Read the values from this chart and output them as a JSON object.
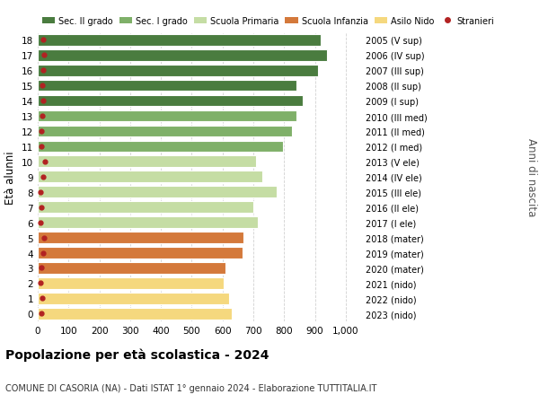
{
  "ages": [
    18,
    17,
    16,
    15,
    14,
    13,
    12,
    11,
    10,
    9,
    8,
    7,
    6,
    5,
    4,
    3,
    2,
    1,
    0
  ],
  "values": [
    920,
    940,
    910,
    840,
    860,
    840,
    825,
    795,
    710,
    730,
    775,
    700,
    715,
    668,
    665,
    610,
    605,
    620,
    630
  ],
  "stranieri": [
    18,
    20,
    18,
    16,
    17,
    14,
    13,
    11,
    22,
    18,
    10,
    12,
    10,
    20,
    18,
    12,
    10,
    14,
    12
  ],
  "right_labels": [
    "2005 (V sup)",
    "2006 (IV sup)",
    "2007 (III sup)",
    "2008 (II sup)",
    "2009 (I sup)",
    "2010 (III med)",
    "2011 (II med)",
    "2012 (I med)",
    "2013 (V ele)",
    "2014 (IV ele)",
    "2015 (III ele)",
    "2016 (II ele)",
    "2017 (I ele)",
    "2018 (mater)",
    "2019 (mater)",
    "2020 (mater)",
    "2021 (nido)",
    "2022 (nido)",
    "2023 (nido)"
  ],
  "bar_colors": [
    "#4a7c3f",
    "#4a7c3f",
    "#4a7c3f",
    "#4a7c3f",
    "#4a7c3f",
    "#7fb069",
    "#7fb069",
    "#7fb069",
    "#c5dda4",
    "#c5dda4",
    "#c5dda4",
    "#c5dda4",
    "#c5dda4",
    "#d4793b",
    "#d4793b",
    "#d4793b",
    "#f5d87e",
    "#f5d87e",
    "#f5d87e"
  ],
  "legend_labels": [
    "Sec. II grado",
    "Sec. I grado",
    "Scuola Primaria",
    "Scuola Infanzia",
    "Asilo Nido",
    "Stranieri"
  ],
  "legend_colors": [
    "#4a7c3f",
    "#7fb069",
    "#c5dda4",
    "#d4793b",
    "#f5d87e",
    "#b22222"
  ],
  "ylabel": "Età alunni",
  "right_ylabel": "Anni di nascita",
  "title": "Popolazione per età scolastica - 2024",
  "subtitle": "COMUNE DI CASORIA (NA) - Dati ISTAT 1° gennaio 2024 - Elaborazione TUTTITALIA.IT",
  "background_color": "#ffffff",
  "grid_color": "#cccccc"
}
